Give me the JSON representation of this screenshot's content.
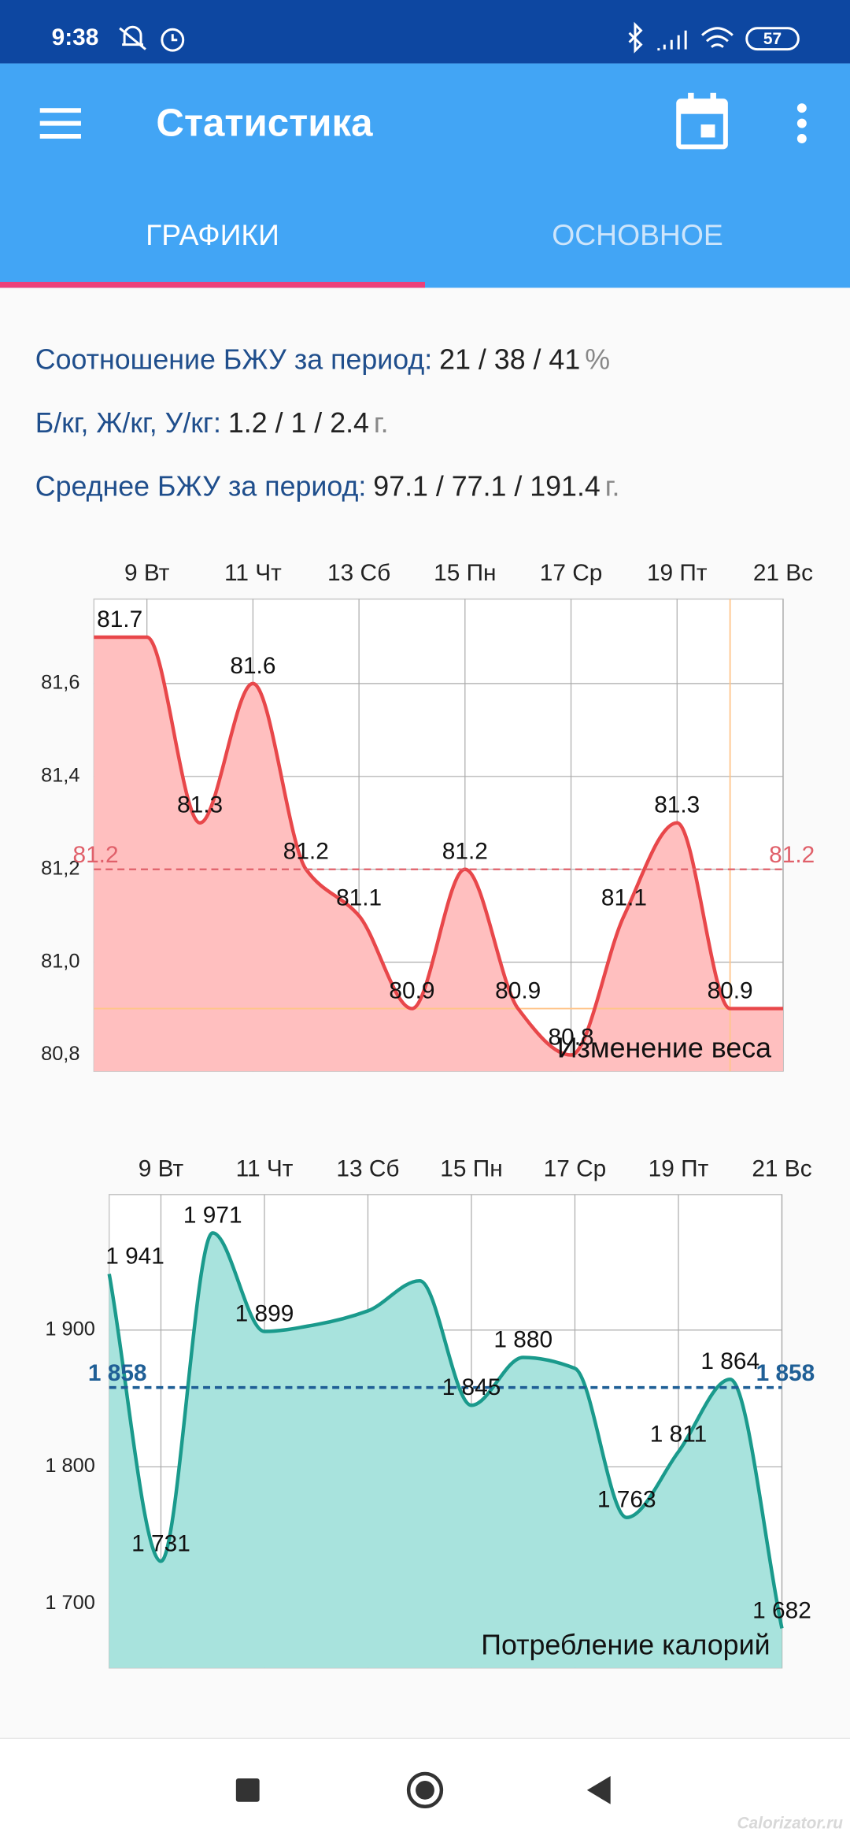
{
  "status_bar": {
    "time": "9:38",
    "battery": "57"
  },
  "app_bar": {
    "title": "Статистика"
  },
  "tabs": [
    "ГРАФИКИ",
    "ОСНОВНОЕ"
  ],
  "summary": [
    {
      "label": "Соотношение БЖУ за период:",
      "value": "21 / 38 / 41",
      "unit": "%"
    },
    {
      "label": "Б/кг, Ж/кг, У/кг:",
      "value": "1.2 / 1 / 2.4",
      "unit": "г."
    },
    {
      "label": "Среднее БЖУ за период:",
      "value": "97.1 / 77.1 / 191.4",
      "unit": "г."
    }
  ],
  "chart_data": [
    {
      "type": "area",
      "title": "Изменение веса",
      "categories": [
        null,
        "9 Вт",
        null,
        "11 Чт",
        null,
        "13 Сб",
        null,
        "15 Пн",
        null,
        "17 Ср",
        null,
        "19 Пт",
        null,
        "21 Вс"
      ],
      "values": [
        81.7,
        81.7,
        81.3,
        81.6,
        81.2,
        81.1,
        80.9,
        81.2,
        80.9,
        80.8,
        81.1,
        81.3,
        80.9,
        80.9
      ],
      "value_labels": [
        "81.7",
        null,
        "81.3",
        "81.6",
        "81.2",
        "81.1",
        "80.9",
        "81.2",
        "80.9",
        "80.8",
        "81.1",
        "81.3",
        "80.9",
        null
      ],
      "color": "#e8474a",
      "fill_color": "#ffbfbf",
      "average": 81.2,
      "average_color": "#e0606a",
      "highlight_color": "#ffc58a",
      "ylim": [
        80.765,
        81.782
      ],
      "yticks": [
        {
          "value": 80.8,
          "label": "80,8"
        },
        {
          "value": 81.0,
          "label": "81,0"
        },
        {
          "value": 81.2,
          "label": "81,2"
        },
        {
          "value": 81.4,
          "label": "81,4"
        },
        {
          "value": 81.6,
          "label": "81,6"
        }
      ],
      "grid": true
    },
    {
      "type": "area",
      "title": "Потребление калорий",
      "categories": [
        null,
        "9 Вт",
        null,
        "11 Чт",
        null,
        "13 Сб",
        null,
        "15 Пн",
        null,
        "17 Ср",
        null,
        "19 Пт",
        null,
        "21 Вс"
      ],
      "values": [
        1941,
        1731,
        1971,
        1899,
        1904,
        1914,
        1936,
        1845,
        1880,
        1872,
        1763,
        1811,
        1864,
        1682
      ],
      "value_labels": [
        "1 941",
        "1 731",
        "1 971",
        "1 899",
        null,
        null,
        null,
        "1 845",
        "1 880",
        null,
        "1 763",
        "1 811",
        "1 864",
        "1 682"
      ],
      "color": "#1a9a8c",
      "fill_color": "#a8e3dd",
      "average": {
        "value": 1858,
        "label": "1 858"
      },
      "average_color": "#1f5f96",
      "ylim": [
        1653,
        1999
      ],
      "yticks": [
        {
          "value": 1700,
          "label": "1 700"
        },
        {
          "value": 1800,
          "label": "1 800"
        },
        {
          "value": 1900,
          "label": "1 900"
        }
      ],
      "grid": true
    }
  ],
  "watermark": "Calorizator.ru"
}
